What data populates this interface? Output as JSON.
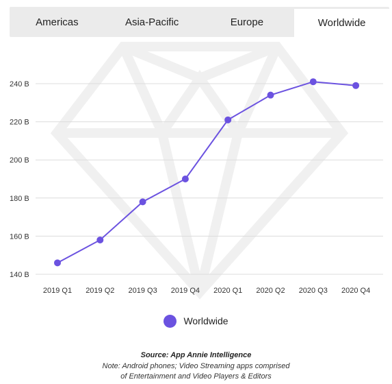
{
  "tabs": [
    {
      "label": "Americas",
      "active": false
    },
    {
      "label": "Asia-Pacific",
      "active": false
    },
    {
      "label": "Europe",
      "active": false
    },
    {
      "label": "Worldwide",
      "active": true
    }
  ],
  "chart_data": {
    "type": "line",
    "categories": [
      "2019 Q1",
      "2019 Q2",
      "2019 Q3",
      "2019 Q4",
      "2020 Q1",
      "2020 Q2",
      "2020 Q3",
      "2020 Q4"
    ],
    "series": [
      {
        "name": "Worldwide",
        "values": [
          146,
          158,
          178,
          190,
          221,
          234,
          241,
          239
        ]
      }
    ],
    "yticks": [
      140,
      160,
      180,
      200,
      220,
      240
    ],
    "ytick_labels": [
      "140 B",
      "160 B",
      "180 B",
      "200 B",
      "220 B",
      "240 B"
    ],
    "ylim": [
      140,
      240
    ],
    "grid": true,
    "legend_position": "bottom",
    "color": "#6b52e0"
  },
  "footer": {
    "source": "Source: App Annie Intelligence",
    "note_line1": "Note: Android phones; Video Streaming apps comprised",
    "note_line2": "of Entertainment and Video Players & Editors"
  }
}
